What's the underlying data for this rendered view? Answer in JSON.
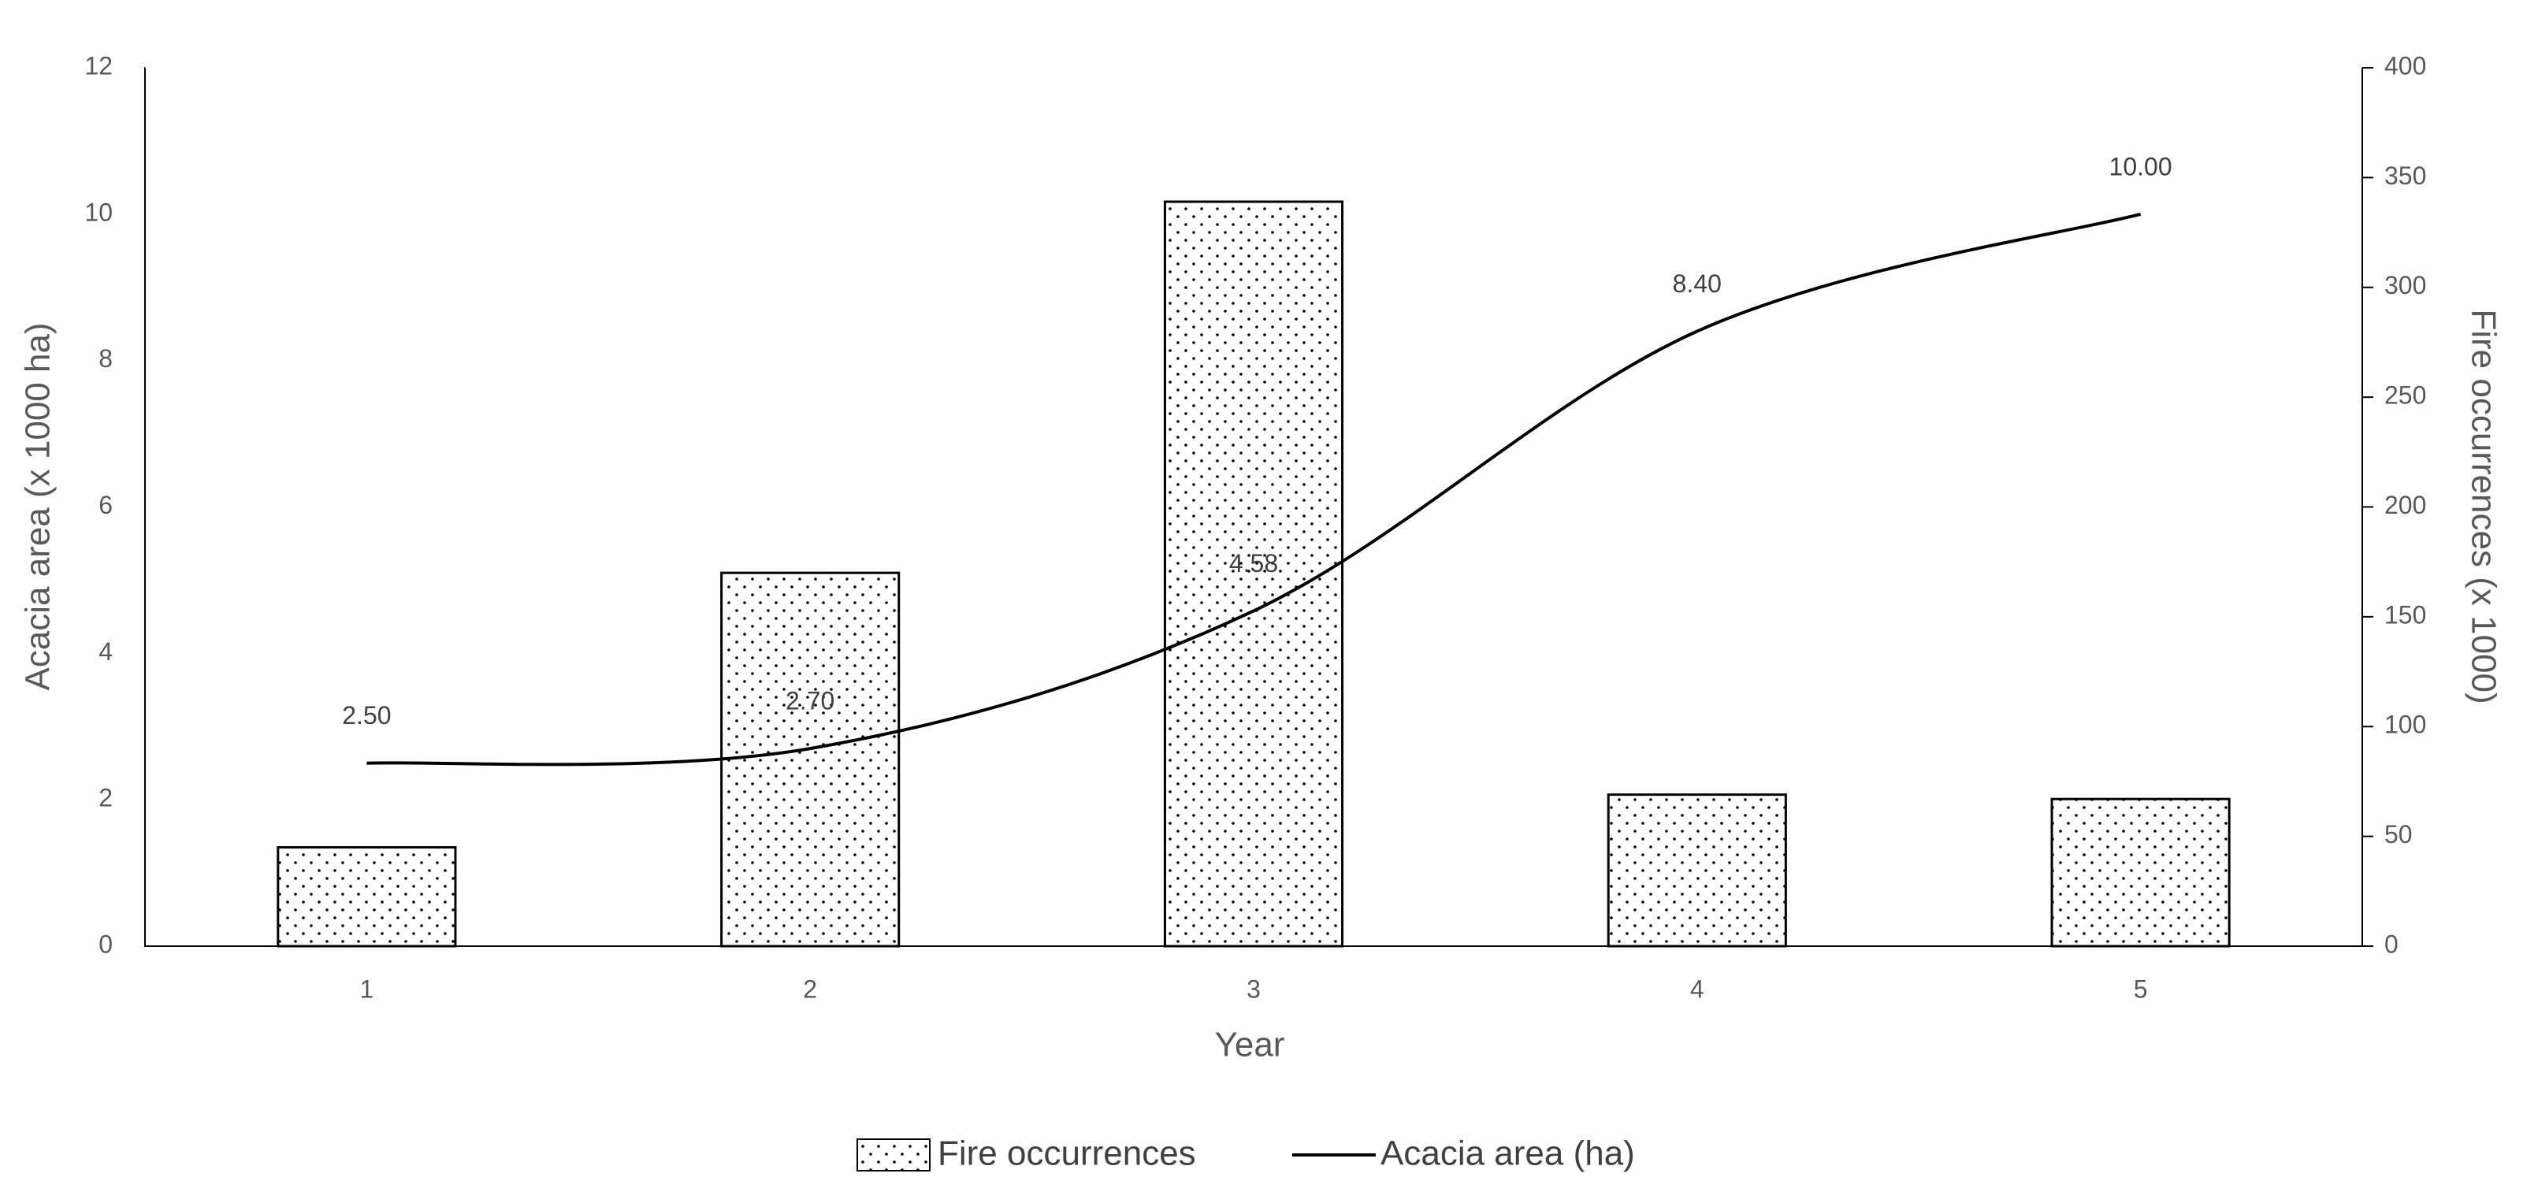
{
  "chart_data": {
    "type": "combo",
    "xlabel": "Year",
    "ylabel": "Acacia area (x 1000 ha)",
    "y2label": "Fire occurrences (x 1000)",
    "categories": [
      "1",
      "2",
      "3",
      "4",
      "5"
    ],
    "ylim": [
      0,
      12
    ],
    "yticks": [
      0,
      2,
      4,
      6,
      8,
      10,
      12
    ],
    "y2lim": [
      0,
      400
    ],
    "y2ticks": [
      0,
      50,
      100,
      150,
      200,
      250,
      300,
      350,
      400
    ],
    "series": [
      {
        "name": "Fire occurrences",
        "type": "bar",
        "axis": "y2",
        "color": "#000000",
        "pattern": "dots",
        "values": [
          45,
          170,
          339,
          69,
          67
        ]
      },
      {
        "name": "Acacia area (ha)",
        "type": "line",
        "color": "#000000",
        "smooth": true,
        "values": [
          2.5,
          2.7,
          4.58,
          8.4,
          10.0
        ],
        "value_labels": [
          "2.50",
          "2.70",
          "4.58",
          "8.40",
          "10.00"
        ]
      }
    ]
  }
}
